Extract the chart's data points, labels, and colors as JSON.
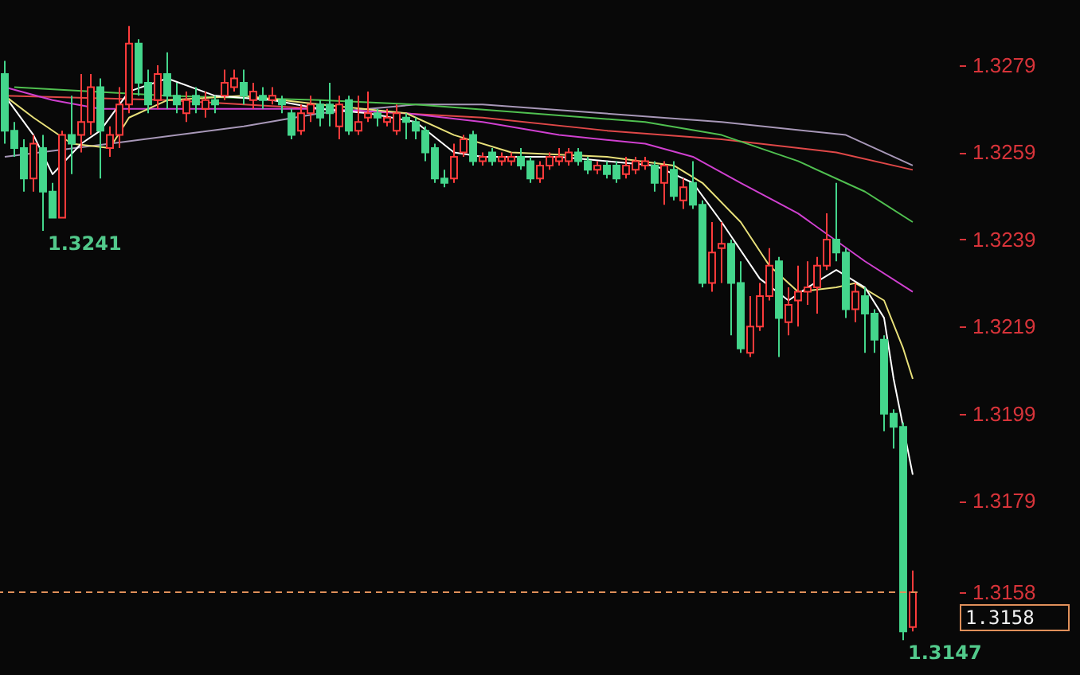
{
  "chart_data": {
    "type": "candlestick",
    "categories": [
      null,
      null,
      null,
      null,
      null,
      null,
      null,
      null,
      null,
      null,
      null,
      null,
      null,
      null,
      null,
      null,
      null,
      null,
      null,
      null,
      null,
      null,
      null,
      null,
      null,
      null,
      null,
      null,
      null,
      null,
      null,
      null,
      null,
      null,
      null,
      null,
      null,
      null,
      null,
      null,
      null,
      null,
      null,
      null,
      null,
      null,
      null,
      null,
      null,
      null,
      null,
      null,
      null,
      null,
      null,
      null,
      null,
      null,
      null,
      null,
      null,
      null,
      null,
      null,
      null,
      null,
      null,
      null,
      null,
      null,
      null,
      null,
      null,
      null,
      null,
      null,
      null,
      null,
      null,
      null,
      null,
      null,
      null,
      null,
      null,
      null,
      null,
      null,
      null,
      null,
      null,
      null,
      null,
      null,
      null,
      null
    ],
    "ohlc": [
      [
        1.3277,
        1.328,
        1.3261,
        1.3264
      ],
      [
        1.3264,
        1.3266,
        1.3258,
        1.326
      ],
      [
        1.326,
        1.3262,
        1.325,
        1.3253
      ],
      [
        1.3253,
        1.3263,
        1.325,
        1.3261
      ],
      [
        1.326,
        1.3263,
        1.3241,
        1.325
      ],
      [
        1.325,
        1.3252,
        1.3244,
        1.3244
      ],
      [
        1.3244,
        1.3264,
        1.3244,
        1.3263
      ],
      [
        1.3263,
        1.3272,
        1.3254,
        1.3261
      ],
      [
        1.3263,
        1.3277,
        1.3259,
        1.3266
      ],
      [
        1.3266,
        1.3277,
        1.3263,
        1.3274
      ],
      [
        1.3274,
        1.3276,
        1.3253,
        1.3264
      ],
      [
        1.326,
        1.3265,
        1.3258,
        1.3263
      ],
      [
        1.3263,
        1.3274,
        1.326,
        1.327
      ],
      [
        1.327,
        1.3288,
        1.3268,
        1.3284
      ],
      [
        1.3284,
        1.3285,
        1.3272,
        1.3275
      ],
      [
        1.3275,
        1.3278,
        1.3268,
        1.327
      ],
      [
        1.3271,
        1.3279,
        1.3269,
        1.3277
      ],
      [
        1.3277,
        1.3282,
        1.3269,
        1.3272
      ],
      [
        1.3272,
        1.3275,
        1.3268,
        1.327
      ],
      [
        1.3268,
        1.3273,
        1.3266,
        1.3271
      ],
      [
        1.3272,
        1.3274,
        1.3268,
        1.327
      ],
      [
        1.3269,
        1.3273,
        1.3267,
        1.3271
      ],
      [
        1.3271,
        1.3272,
        1.3268,
        1.327
      ],
      [
        1.3272,
        1.3278,
        1.3271,
        1.3275
      ],
      [
        1.3274,
        1.3278,
        1.3273,
        1.3276
      ],
      [
        1.3275,
        1.3278,
        1.327,
        1.3272
      ],
      [
        1.3271,
        1.3275,
        1.3269,
        1.3273
      ],
      [
        1.3272,
        1.3274,
        1.3269,
        1.3271
      ],
      [
        1.3271,
        1.3274,
        1.327,
        1.3272
      ],
      [
        1.3271,
        1.3272,
        1.3268,
        1.327
      ],
      [
        1.3268,
        1.3269,
        1.3262,
        1.3263
      ],
      [
        1.3264,
        1.327,
        1.3263,
        1.3268
      ],
      [
        1.3268,
        1.3272,
        1.3266,
        1.327
      ],
      [
        1.327,
        1.3271,
        1.3265,
        1.3267
      ],
      [
        1.327,
        1.3275,
        1.3265,
        1.3268
      ],
      [
        1.3265,
        1.3272,
        1.3262,
        1.327
      ],
      [
        1.3271,
        1.3272,
        1.3263,
        1.3264
      ],
      [
        1.3264,
        1.3272,
        1.3263,
        1.3266
      ],
      [
        1.3267,
        1.3273,
        1.3266,
        1.3268
      ],
      [
        1.3268,
        1.3269,
        1.3265,
        1.3267
      ],
      [
        1.3266,
        1.3269,
        1.3265,
        1.3267
      ],
      [
        1.3264,
        1.327,
        1.3263,
        1.3268
      ],
      [
        1.3267,
        1.3268,
        1.3262,
        1.3266
      ],
      [
        1.3266,
        1.3267,
        1.3262,
        1.3264
      ],
      [
        1.3264,
        1.3265,
        1.3257,
        1.3259
      ],
      [
        1.326,
        1.3261,
        1.3252,
        1.3253
      ],
      [
        1.3253,
        1.3255,
        1.3251,
        1.3252
      ],
      [
        1.3253,
        1.3261,
        1.3252,
        1.3258
      ],
      [
        1.3259,
        1.3263,
        1.3258,
        1.3262
      ],
      [
        1.3263,
        1.3264,
        1.3256,
        1.3257
      ],
      [
        1.3257,
        1.3259,
        1.3256,
        1.3258
      ],
      [
        1.3259,
        1.326,
        1.3256,
        1.3257
      ],
      [
        1.3257,
        1.3259,
        1.3256,
        1.3258
      ],
      [
        1.3257,
        1.3259,
        1.3256,
        1.3258
      ],
      [
        1.3258,
        1.326,
        1.3255,
        1.3256
      ],
      [
        1.3257,
        1.3258,
        1.3252,
        1.3253
      ],
      [
        1.3253,
        1.3257,
        1.3252,
        1.3256
      ],
      [
        1.3256,
        1.3259,
        1.3255,
        1.3258
      ],
      [
        1.3257,
        1.326,
        1.3256,
        1.3258
      ],
      [
        1.3257,
        1.326,
        1.3256,
        1.3259
      ],
      [
        1.3259,
        1.326,
        1.3256,
        1.3257
      ],
      [
        1.3257,
        1.3258,
        1.3254,
        1.3255
      ],
      [
        1.3255,
        1.3257,
        1.3254,
        1.3256
      ],
      [
        1.3256,
        1.3257,
        1.3253,
        1.3254
      ],
      [
        1.3256,
        1.3257,
        1.3252,
        1.3253
      ],
      [
        1.3254,
        1.3258,
        1.3253,
        1.3256
      ],
      [
        1.3255,
        1.3258,
        1.3254,
        1.3257
      ],
      [
        1.3256,
        1.3258,
        1.3255,
        1.3257
      ],
      [
        1.3256,
        1.3257,
        1.325,
        1.3252
      ],
      [
        1.3252,
        1.3257,
        1.3247,
        1.3256
      ],
      [
        1.3255,
        1.3257,
        1.3248,
        1.3249
      ],
      [
        1.3248,
        1.3253,
        1.3246,
        1.3251
      ],
      [
        1.3252,
        1.3257,
        1.3246,
        1.3247
      ],
      [
        1.3247,
        1.3248,
        1.3228,
        1.3229
      ],
      [
        1.3229,
        1.3243,
        1.3227,
        1.3236
      ],
      [
        1.3237,
        1.3243,
        1.3229,
        1.3238
      ],
      [
        1.3238,
        1.3239,
        1.3217,
        1.3229
      ],
      [
        1.3229,
        1.3234,
        1.3213,
        1.3214
      ],
      [
        1.3213,
        1.3226,
        1.3212,
        1.3219
      ],
      [
        1.3219,
        1.3229,
        1.3218,
        1.3226
      ],
      [
        1.3226,
        1.3237,
        1.3225,
        1.3233
      ],
      [
        1.3234,
        1.3235,
        1.3212,
        1.3221
      ],
      [
        1.322,
        1.3228,
        1.3217,
        1.3224
      ],
      [
        1.3225,
        1.3233,
        1.3219,
        1.3227
      ],
      [
        1.3227,
        1.3234,
        1.3224,
        1.3228
      ],
      [
        1.3228,
        1.3235,
        1.3222,
        1.3233
      ],
      [
        1.3233,
        1.3245,
        1.3232,
        1.3239
      ],
      [
        1.3239,
        1.3252,
        1.3234,
        1.3236
      ],
      [
        1.3236,
        1.3237,
        1.3221,
        1.3223
      ],
      [
        1.3223,
        1.3229,
        1.322,
        1.3227
      ],
      [
        1.3226,
        1.3228,
        1.3213,
        1.3222
      ],
      [
        1.3222,
        1.3223,
        1.3213,
        1.3216
      ],
      [
        1.3216,
        1.3217,
        1.3195,
        1.3199
      ],
      [
        1.3199,
        1.32,
        1.3191,
        1.3196
      ],
      [
        1.3196,
        1.3197,
        1.3147,
        1.3149
      ],
      [
        1.315,
        1.3163,
        1.3149,
        1.3158
      ]
    ],
    "series": [
      {
        "type": "line",
        "color": "#a898b8",
        "values": [
          1.3258,
          null,
          null,
          null,
          null,
          null,
          null,
          null,
          null,
          null,
          null,
          1.3261,
          null,
          null,
          null,
          null,
          null,
          null,
          null,
          null,
          null,
          null,
          null,
          null,
          null,
          1.3265,
          null,
          null,
          null,
          null,
          null,
          null,
          null,
          1.3268,
          null,
          null,
          null,
          null,
          null,
          null,
          null,
          null,
          null,
          1.327,
          null,
          null,
          null,
          null,
          null,
          null,
          1.327,
          null,
          null,
          null,
          null,
          null,
          null,
          null,
          null,
          null,
          null,
          null,
          null,
          null,
          null,
          null,
          null,
          null,
          null,
          null,
          null,
          null,
          null,
          null,
          null,
          1.3266,
          null,
          null,
          null,
          null,
          null,
          null,
          null,
          null,
          null,
          null,
          null,
          null,
          1.3263,
          null,
          null,
          null,
          null,
          null,
          null,
          1.3256
        ]
      },
      {
        "type": "line",
        "color": "#e04848",
        "values": [
          1.3272,
          null,
          null,
          null,
          null,
          null,
          null,
          null,
          null,
          null,
          null,
          null,
          null,
          null,
          null,
          null,
          null,
          1.3271,
          null,
          null,
          null,
          null,
          null,
          null,
          null,
          null,
          null,
          null,
          null,
          null,
          null,
          null,
          null,
          1.3269,
          null,
          null,
          null,
          null,
          null,
          null,
          null,
          null,
          null,
          null,
          null,
          null,
          null,
          null,
          null,
          null,
          1.3267,
          null,
          null,
          null,
          null,
          null,
          null,
          null,
          null,
          null,
          null,
          null,
          null,
          1.3264,
          null,
          null,
          null,
          null,
          null,
          null,
          null,
          null,
          null,
          null,
          null,
          1.3262,
          null,
          null,
          null,
          null,
          null,
          null,
          null,
          null,
          null,
          null,
          null,
          1.3259,
          null,
          null,
          null,
          null,
          null,
          null,
          null,
          1.3255
        ]
      },
      {
        "type": "line",
        "color": "#50c050",
        "values": [
          null,
          1.3274,
          null,
          null,
          null,
          null,
          null,
          null,
          null,
          null,
          null,
          null,
          null,
          null,
          null,
          null,
          null,
          1.3272,
          null,
          null,
          null,
          null,
          null,
          null,
          null,
          null,
          null,
          null,
          null,
          null,
          null,
          null,
          null,
          1.3271,
          null,
          null,
          null,
          null,
          null,
          null,
          null,
          null,
          null,
          1.327,
          null,
          null,
          null,
          null,
          null,
          null,
          null,
          null,
          null,
          null,
          null,
          1.3268,
          null,
          null,
          null,
          null,
          null,
          null,
          null,
          null,
          null,
          null,
          null,
          1.3266,
          null,
          null,
          null,
          null,
          null,
          null,
          null,
          1.3263,
          null,
          null,
          null,
          null,
          null,
          null,
          null,
          1.3257,
          null,
          null,
          null,
          null,
          null,
          null,
          1.325,
          null,
          null,
          null,
          null,
          1.3243
        ]
      },
      {
        "type": "line",
        "color": "#d040d0",
        "values": [
          1.3274,
          null,
          null,
          null,
          null,
          1.3271,
          null,
          null,
          null,
          null,
          1.3269,
          null,
          null,
          null,
          null,
          null,
          null,
          1.3269,
          null,
          null,
          null,
          null,
          null,
          null,
          null,
          null,
          null,
          null,
          null,
          null,
          null,
          null,
          null,
          1.3269,
          null,
          null,
          null,
          null,
          null,
          null,
          null,
          null,
          1.3268,
          null,
          null,
          null,
          null,
          null,
          null,
          null,
          1.3266,
          null,
          null,
          null,
          null,
          null,
          null,
          null,
          1.3263,
          null,
          null,
          null,
          null,
          null,
          null,
          null,
          null,
          1.3261,
          null,
          null,
          null,
          null,
          1.3258,
          null,
          null,
          null,
          null,
          1.3252,
          null,
          null,
          null,
          null,
          null,
          1.3245,
          null,
          null,
          null,
          null,
          null,
          null,
          1.3234,
          null,
          null,
          null,
          null,
          1.3227
        ]
      },
      {
        "type": "line",
        "color": "#e8e07a",
        "values": [
          1.3272,
          null,
          null,
          1.3267,
          null,
          null,
          null,
          1.3261,
          null,
          null,
          null,
          1.326,
          null,
          1.3267,
          null,
          null,
          null,
          1.3271,
          null,
          null,
          null,
          null,
          null,
          null,
          null,
          1.3272,
          null,
          null,
          null,
          null,
          null,
          null,
          null,
          1.327,
          null,
          null,
          null,
          null,
          null,
          null,
          null,
          null,
          1.3268,
          null,
          null,
          null,
          null,
          1.3263,
          null,
          null,
          null,
          null,
          null,
          1.3259,
          null,
          null,
          null,
          null,
          null,
          null,
          null,
          null,
          null,
          1.3258,
          null,
          null,
          null,
          null,
          null,
          null,
          1.3256,
          null,
          null,
          1.3252,
          null,
          null,
          null,
          1.3243,
          null,
          null,
          1.3233,
          null,
          null,
          1.3227,
          null,
          null,
          null,
          1.3228,
          null,
          1.3229,
          null,
          null,
          1.3225,
          null,
          1.3214,
          1.3207
        ]
      },
      {
        "type": "line",
        "color": "#ffffff",
        "values": [
          1.3272,
          null,
          null,
          1.3263,
          null,
          1.3254,
          null,
          null,
          1.3261,
          null,
          1.3264,
          null,
          null,
          1.3273,
          null,
          null,
          null,
          1.3276,
          null,
          null,
          null,
          null,
          1.3272,
          null,
          null,
          null,
          null,
          null,
          1.3271,
          null,
          null,
          null,
          null,
          1.3269,
          null,
          null,
          null,
          null,
          1.3268,
          null,
          null,
          null,
          null,
          1.3266,
          null,
          null,
          null,
          1.3259,
          null,
          null,
          1.3258,
          null,
          null,
          1.3258,
          null,
          null,
          null,
          null,
          1.3258,
          null,
          null,
          null,
          null,
          1.3257,
          null,
          null,
          null,
          null,
          1.3256,
          null,
          null,
          null,
          1.3252,
          null,
          null,
          1.3243,
          null,
          null,
          null,
          1.323,
          null,
          null,
          1.3225,
          null,
          1.3228,
          null,
          null,
          1.3232,
          null,
          null,
          1.3228,
          null,
          1.3221,
          1.3207,
          null,
          1.3185
        ]
      }
    ],
    "ylim": [
      1.3139,
      1.3294
    ],
    "yticks": [
      1.3279,
      1.3259,
      1.3239,
      1.3219,
      1.3199,
      1.3179,
      1.3158
    ],
    "ref_lines": [
      {
        "axis": "y",
        "value": 1.3158,
        "label": "1.3158",
        "color": "#e0905a",
        "line_style": "dashed"
      }
    ],
    "annotations": [
      "1.3241",
      "1.3147"
    ],
    "line_style": "solid"
  }
}
